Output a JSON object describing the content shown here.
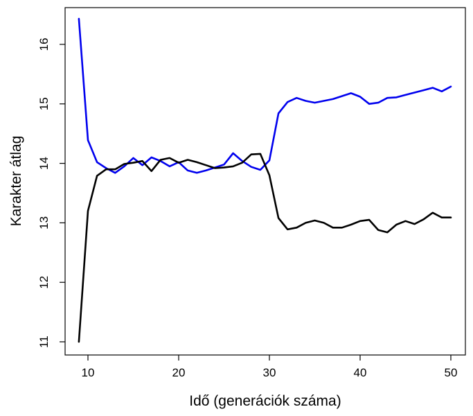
{
  "chart_data": {
    "type": "line",
    "title": "",
    "xlabel": "Idő (generációk száma)",
    "ylabel": "Karakter átlag",
    "xlim": [
      9,
      50
    ],
    "ylim": [
      11,
      16.45
    ],
    "xticks": [
      10,
      20,
      30,
      40,
      50
    ],
    "yticks": [
      11,
      12,
      13,
      14,
      15,
      16
    ],
    "grid": false,
    "legend": "none",
    "x": [
      9,
      10,
      11,
      12,
      13,
      14,
      15,
      16,
      17,
      18,
      19,
      20,
      21,
      22,
      23,
      24,
      25,
      26,
      27,
      28,
      29,
      30,
      31,
      32,
      33,
      34,
      35,
      36,
      37,
      38,
      39,
      40,
      41,
      42,
      43,
      44,
      45,
      46,
      47,
      48,
      49,
      50
    ],
    "series": [
      {
        "color": "#0000ee",
        "values": [
          16.43,
          14.39,
          14.02,
          13.92,
          13.84,
          13.95,
          14.09,
          13.97,
          14.1,
          14.04,
          13.95,
          14.02,
          13.88,
          13.84,
          13.88,
          13.93,
          13.98,
          14.17,
          14.04,
          13.94,
          13.89,
          14.05,
          14.84,
          15.03,
          15.1,
          15.05,
          15.02,
          15.05,
          15.08,
          15.13,
          15.18,
          15.12,
          15.0,
          15.02,
          15.1,
          15.11,
          15.15,
          15.19,
          15.23,
          15.27,
          15.21,
          15.29
        ]
      },
      {
        "color": "#000000",
        "values": [
          11.0,
          13.2,
          13.79,
          13.9,
          13.9,
          13.99,
          14.01,
          14.04,
          13.87,
          14.06,
          14.09,
          14.01,
          14.06,
          14.02,
          13.97,
          13.92,
          13.93,
          13.95,
          14.01,
          14.15,
          14.16,
          13.8,
          13.08,
          12.89,
          12.92,
          13.0,
          13.04,
          13.0,
          12.92,
          12.92,
          12.97,
          13.03,
          13.05,
          12.88,
          12.84,
          12.97,
          13.03,
          12.98,
          13.06,
          13.17,
          13.09,
          13.09
        ]
      }
    ]
  }
}
